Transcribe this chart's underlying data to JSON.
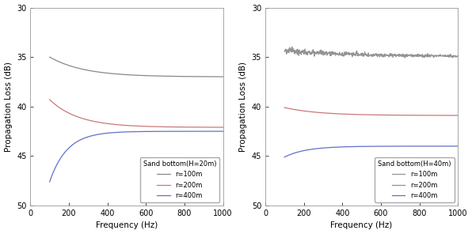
{
  "subplot1": {
    "title": "Sand bottom(H=20m)",
    "curves": [
      {
        "label": "r=100m",
        "color": "#888888",
        "f0": 100,
        "v0": 35.0,
        "f1": 200,
        "v1": 36.3,
        "f_end": 1000,
        "v_end": 37.0,
        "rise_rate": 5.0,
        "dotted": false
      },
      {
        "label": "r=200m",
        "color": "#c87878",
        "f0": 100,
        "v0": 39.3,
        "f1": 200,
        "v1": 41.3,
        "f_end": 1000,
        "v_end": 42.1,
        "rise_rate": 6.0,
        "dotted": false
      },
      {
        "label": "r=400m",
        "color": "#6070c8",
        "f0": 100,
        "v0": 47.6,
        "f1": 200,
        "v1": 43.7,
        "f_end": 1000,
        "v_end": 42.5,
        "rise_rate": 10.0,
        "dotted": false
      }
    ]
  },
  "subplot2": {
    "title": "Sand bottom(H=40m)",
    "curves": [
      {
        "label": "r=100m",
        "color": "#888888",
        "f0": 100,
        "v0": 34.4,
        "f1": 200,
        "v1": 34.7,
        "f_end": 1000,
        "v_end": 35.0,
        "rise_rate": 2.0,
        "dotted": true
      },
      {
        "label": "r=200m",
        "color": "#c87878",
        "f0": 100,
        "v0": 40.1,
        "f1": 200,
        "v1": 40.5,
        "f_end": 1000,
        "v_end": 40.9,
        "rise_rate": 5.0,
        "dotted": false
      },
      {
        "label": "r=400m",
        "color": "#6070c8",
        "f0": 100,
        "v0": 45.1,
        "f1": 200,
        "v1": 44.3,
        "f_end": 1000,
        "v_end": 44.0,
        "rise_rate": 8.0,
        "dotted": false
      }
    ]
  },
  "xlabel": "Frequency (Hz)",
  "ylabel": "Propagation Loss (dB)",
  "xlim": [
    0,
    1000
  ],
  "ylim": [
    50,
    30
  ],
  "xticks": [
    0,
    200,
    400,
    600,
    800,
    1000
  ],
  "yticks": [
    30,
    35,
    40,
    45,
    50
  ],
  "bg_color": "#ffffff",
  "linewidth": 0.9
}
